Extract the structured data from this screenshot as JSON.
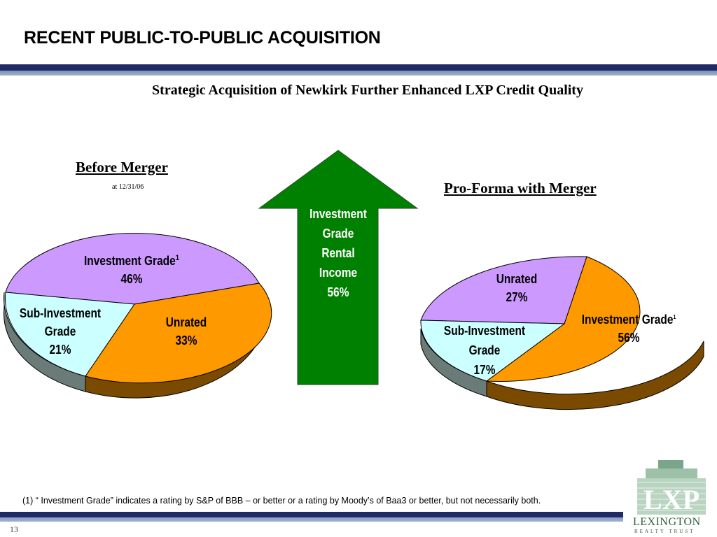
{
  "header": {
    "title": "RECENT PUBLIC-TO-PUBLIC ACQUISITION"
  },
  "subtitle": "Strategic Acquisition of Newkirk Further Enhanced LXP Credit Quality",
  "colors": {
    "investment_grade_before": "#cc99ff",
    "unrated_before": "#ff9900",
    "sub_investment": "#ccffff",
    "investment_grade_after": "#ff9900",
    "unrated_after": "#cc99ff",
    "arrow": "#008000",
    "band": "#1f2a66"
  },
  "arrow": {
    "lines": [
      "Investment",
      "Grade",
      "Rental",
      "Income",
      "56%"
    ]
  },
  "chart_data": [
    {
      "type": "pie",
      "title": "Before Merger",
      "subtitle": "at 12/31/06",
      "slices": [
        {
          "label": "Investment Grade",
          "footnote_mark": "1",
          "value": 46
        },
        {
          "label": "Unrated",
          "value": 33
        },
        {
          "label": "Sub-Investment Grade",
          "value": 21
        }
      ],
      "label_lines": {
        "ig": "Investment Grade",
        "ig_sup": "1",
        "ig_pct": "46%",
        "unrated": "Unrated",
        "unrated_pct": "33%",
        "sub_1": "Sub-Investment",
        "sub_2": "Grade",
        "sub_pct": "21%"
      }
    },
    {
      "type": "pie",
      "title": "Pro-Forma with Merger",
      "slices": [
        {
          "label": "Investment Grade",
          "footnote_mark": "1",
          "value": 56
        },
        {
          "label": "Sub-Investment Grade",
          "value": 17
        },
        {
          "label": "Unrated",
          "value": 27
        }
      ],
      "label_lines": {
        "ig": "Investment Grade",
        "ig_sup": "1",
        "ig_pct": "56%",
        "unrated": "Unrated",
        "unrated_pct": "27%",
        "sub_1": "Sub-Investment",
        "sub_2": "Grade",
        "sub_pct": "17%"
      }
    }
  ],
  "footnote": "(1)  “ Investment Grade” indicates a rating by S&P of BBB – or better or a rating by Moody’s of Baa3 or better, but not necessarily both.",
  "page_number": "13",
  "logo": {
    "mark": "LXP",
    "name": "LEXINGTON",
    "sub": "REALTY TRUST"
  }
}
